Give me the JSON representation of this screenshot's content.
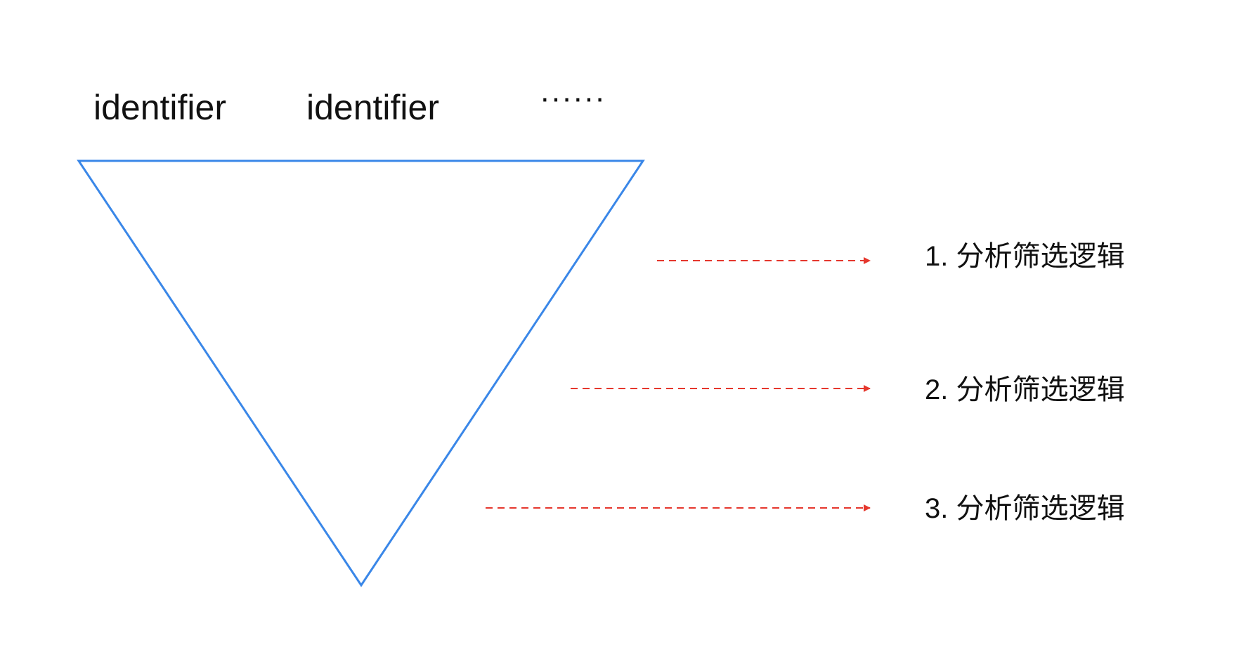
{
  "colors": {
    "background": "#ffffff",
    "funnel_stroke": "#3a87e8",
    "arrow": "#e5372d",
    "text": "#111111"
  },
  "header": {
    "labels": [
      "identifier",
      "identifier",
      "······"
    ]
  },
  "steps": [
    {
      "label": "1. 分析筛选逻辑"
    },
    {
      "label": "2. 分析筛选逻辑"
    },
    {
      "label": "3. 分析筛选逻辑"
    }
  ],
  "shapes": {
    "funnel": "inverted-triangle",
    "arrow_style": "dashed-right-arrow"
  }
}
